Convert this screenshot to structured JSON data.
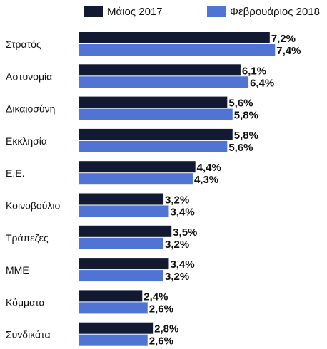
{
  "chart_data": {
    "type": "bar",
    "orientation": "horizontal",
    "categories": [
      "Στρατός",
      "Αστυνομία",
      "Δικαιοσύνη",
      "Εκκλησία",
      "Ε.Ε.",
      "Κοινοβούλιο",
      "Τράπεζες",
      "ΜΜΕ",
      "Κόμματα",
      "Συνδικάτα"
    ],
    "series": [
      {
        "name": "Μάιος 2017",
        "color": "#121a33",
        "values": [
          7.2,
          6.1,
          5.6,
          5.8,
          4.4,
          3.2,
          3.5,
          3.4,
          2.4,
          2.8
        ],
        "labels": [
          "7,2%",
          "6,1%",
          "5,6%",
          "5,8%",
          "4,4%",
          "3,2%",
          "3,5%",
          "3,4%",
          "2,4%",
          "2,8%"
        ]
      },
      {
        "name": "Φεβρουάριος 2018",
        "color": "#4f74d3",
        "values": [
          7.4,
          6.4,
          5.8,
          5.6,
          4.3,
          3.4,
          3.2,
          3.2,
          2.6,
          2.6
        ],
        "labels": [
          "7,4%",
          "6,4%",
          "5,8%",
          "5,6%",
          "4,3%",
          "3,4%",
          "3,2%",
          "3,2%",
          "2,6%",
          "2,6%"
        ]
      }
    ],
    "title": "",
    "xlabel": "",
    "ylabel": "",
    "legend_position": "top",
    "grid": false
  }
}
